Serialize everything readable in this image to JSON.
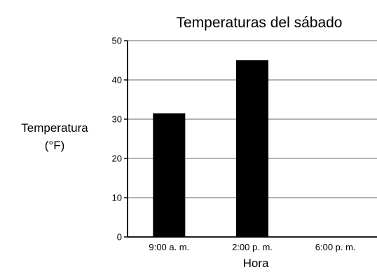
{
  "chart_data": {
    "type": "bar",
    "title": "Temperaturas del sábado",
    "ylabel_lines": [
      "Temperatura",
      "(°F)"
    ],
    "xlabel": "Hora",
    "categories": [
      "9:00 a. m.",
      "2:00 p. m.",
      "6:00 p. m."
    ],
    "values": [
      31.5,
      45,
      null
    ],
    "ylim": [
      0,
      50
    ],
    "yticks": [
      "0",
      "10",
      "20",
      "30",
      "40",
      "50"
    ],
    "grid": true,
    "bar_color": "#000000",
    "grid_color": "#999999"
  }
}
